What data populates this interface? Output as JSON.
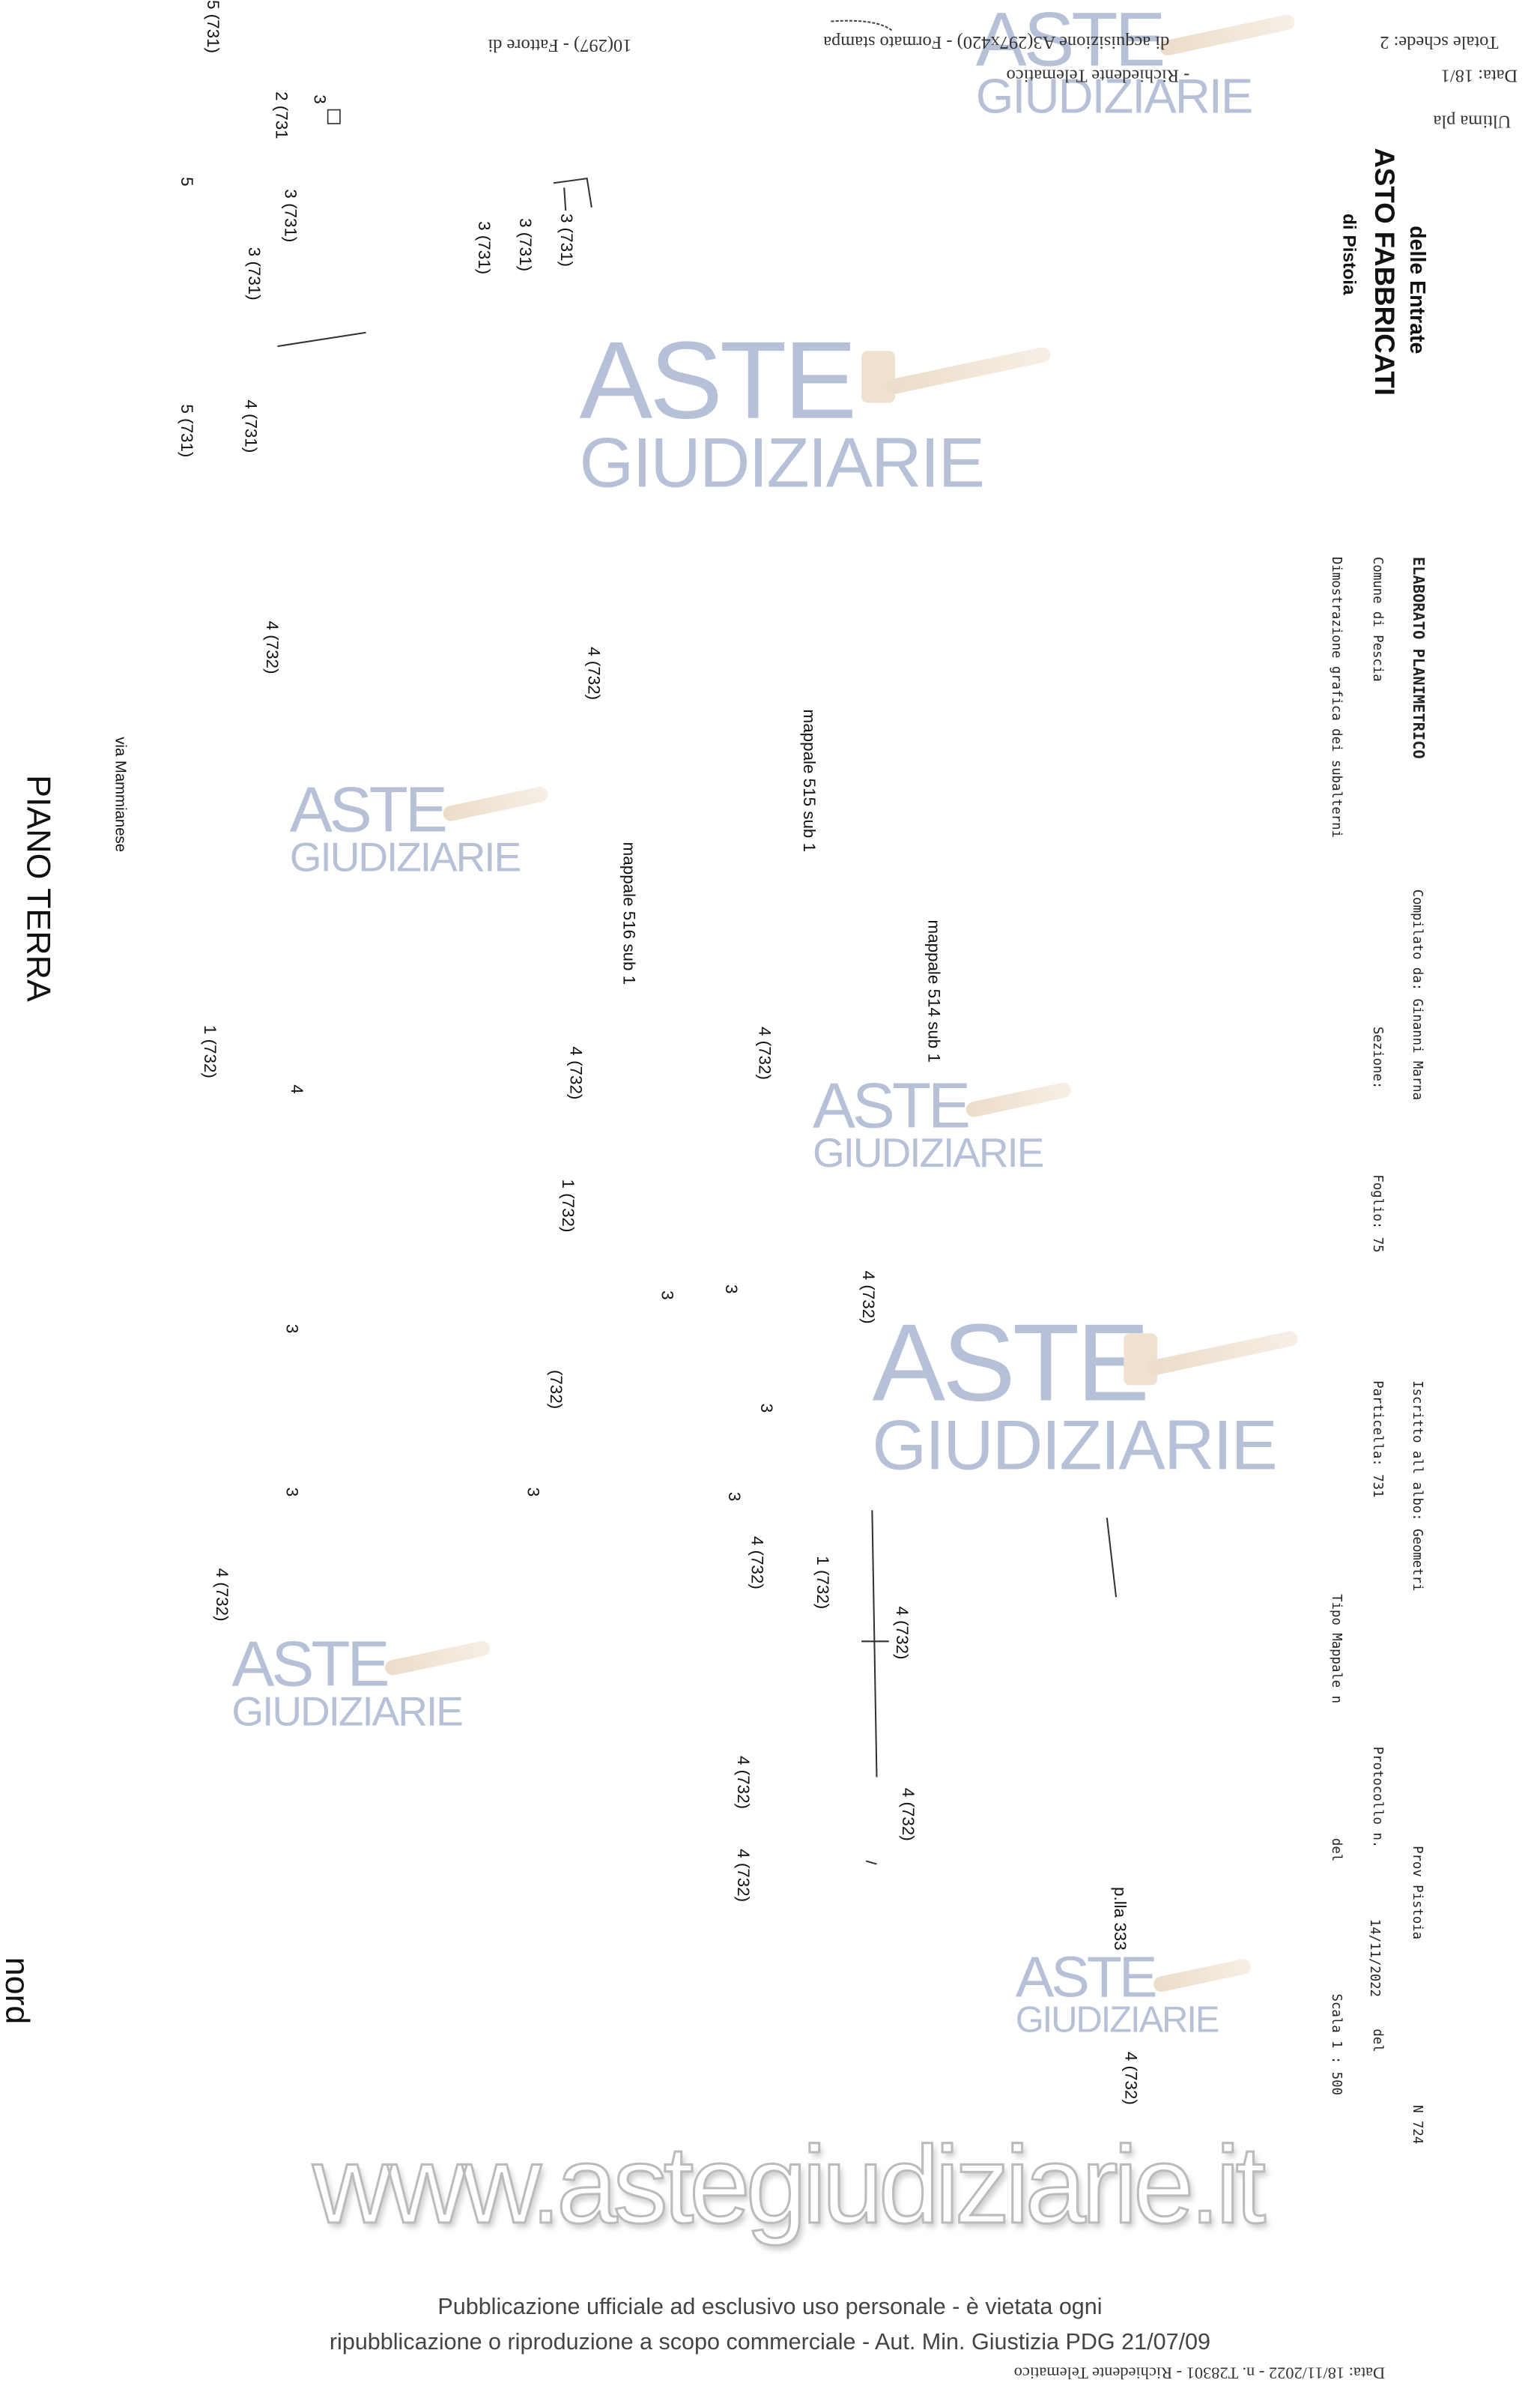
{
  "header": {
    "agency": "delle Entrate",
    "title": "ASTO FABBRICATI",
    "office": "di Pistoia",
    "totale_schede": "Totale schede: 2",
    "data_top": "Data: 18/1",
    "ultima": "Ultima pla",
    "formato": "di acquisizione A3(297x420) - Formato stampa",
    "richiedente_top": "- Richiedente Telematico",
    "fattore": "10(297) - Fattore di"
  },
  "form": {
    "elaborato": "ELABORATO PLANIMETRICO",
    "compilato": "Compilato da: Ginanni Marna",
    "iscritto": "Iscritto all albo: Geometri",
    "prov": "Prov Pistoia",
    "numero": "N 724",
    "comune": "Comune di Pescia",
    "sezione": "Sezione:",
    "foglio": "Foglio: 75",
    "particella": "Particella: 731",
    "protocollo": "Protocollo n.",
    "protocollo_data": "14/11/2022",
    "del1": "del",
    "dimostrazione": "Dimostrazione grafica dei subalterni",
    "tipo_mappale": "Tipo Mappale n",
    "del2": "del",
    "scala": "Scala 1 : 500"
  },
  "plan": {
    "floor": "PIANO TERRA",
    "north": "nord",
    "street": "via Mammianese",
    "mappale_515": "mappale 515 sub 1",
    "mappale_516": "mappale 516 sub 1",
    "mappale_514": "mappale 514 sub 1",
    "plla_333": "p.lla 333",
    "labels": [
      "5 (731)",
      "2 (731",
      "3",
      "3 (731)",
      "5",
      "3 (731)",
      "4 (731)",
      "5 (731)",
      "3 (731)",
      "3 (731)",
      "3 (731)",
      "4 (732)",
      "4 (732)",
      "1 (732)",
      "4",
      "4 (732)",
      "4 (732)",
      "1 (732)",
      "4 (732)",
      "3",
      "3",
      "(732)",
      "3",
      "3",
      "3",
      "3",
      "3",
      "4 (732)",
      "1 (732)",
      "4 (732)",
      "4 (732)",
      "4 (732)",
      "4 (732)",
      "4 (732)",
      "4 (732)"
    ]
  },
  "watermark": {
    "line1": "ASTE",
    "line2": "GIUDIZIARIE",
    "site": "www.astegiudiziarie.it",
    "color": "#aab7d2"
  },
  "footer": {
    "line1": "Pubblicazione ufficiale ad esclusivo uso personale - è vietata ogni",
    "line2": "ripubblicazione o riproduzione a scopo commerciale - Aut. Min. Giustizia PDG 21/07/09",
    "stamp": "Data: 18/11/2022 - n. T28301 - Richiedente Telematico"
  }
}
